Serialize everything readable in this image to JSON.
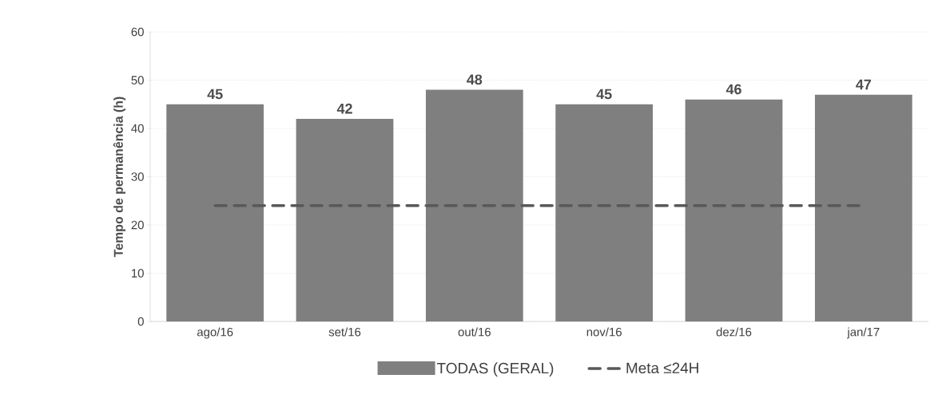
{
  "chart_data": {
    "type": "bar",
    "ylabel": "Tempo de permanência (h)",
    "categories": [
      "ago/16",
      "set/16",
      "out/16",
      "nov/16",
      "dez/16",
      "jan/17"
    ],
    "series": [
      {
        "name": "TODAS (GERAL)",
        "color": "#7f7f7f",
        "values": [
          45,
          42,
          48,
          45,
          46,
          47
        ],
        "value_labels": [
          "45",
          "42",
          "48",
          "45",
          "46",
          "47"
        ]
      },
      {
        "name": "Meta ≤24H",
        "type": "line",
        "line_style": "dashed",
        "color": "#595959",
        "values": [
          24,
          24,
          24,
          24,
          24,
          24
        ]
      }
    ],
    "ylim": [
      0,
      60
    ],
    "yticks": [
      0,
      10,
      20,
      30,
      40,
      50,
      60
    ],
    "grid": "y",
    "legend": "bottom"
  }
}
